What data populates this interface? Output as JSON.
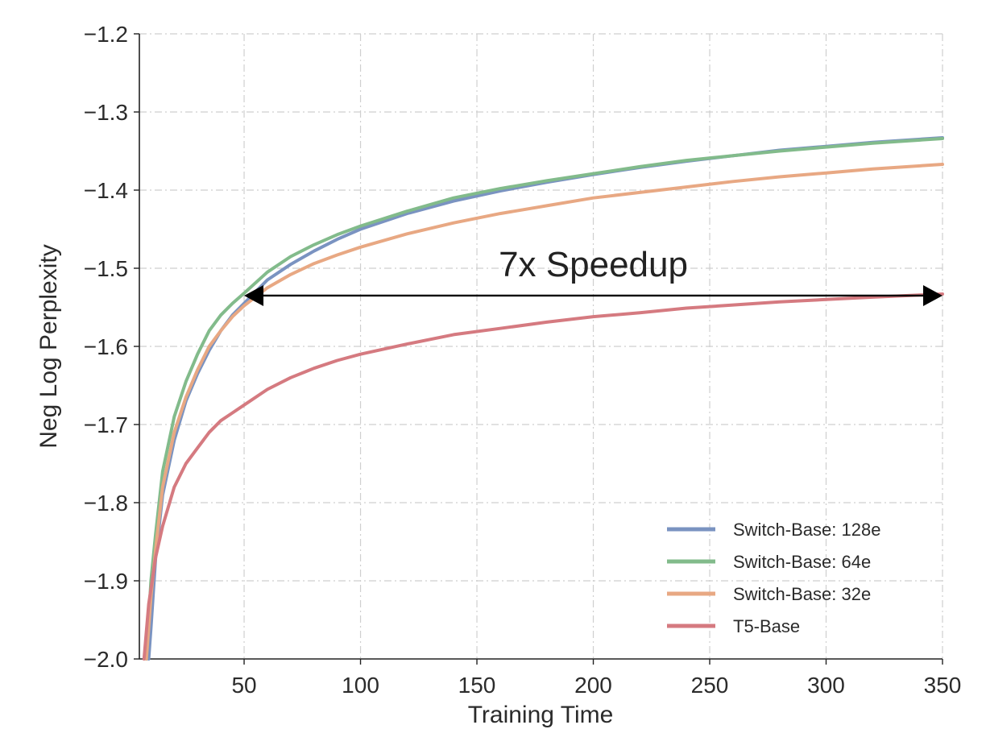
{
  "chart_data": {
    "type": "line",
    "title": "",
    "xlabel": "Training Time",
    "ylabel": "Neg Log Perplexity",
    "xlim": [
      5,
      350
    ],
    "ylim": [
      -2.0,
      -1.2
    ],
    "xticks": [
      50,
      100,
      150,
      200,
      250,
      300,
      350
    ],
    "xtick_labels": [
      "50",
      "100",
      "150",
      "200",
      "250",
      "300",
      "350"
    ],
    "yticks": [
      -2.0,
      -1.9,
      -1.8,
      -1.7,
      -1.6,
      -1.5,
      -1.4,
      -1.3,
      -1.2
    ],
    "ytick_labels": [
      "−2.0",
      "−1.9",
      "−1.8",
      "−1.7",
      "−1.6",
      "−1.5",
      "−1.4",
      "−1.3",
      "−1.2"
    ],
    "grid": true,
    "legend_position": "bottom-right",
    "series": [
      {
        "name": "Switch-Base: 128e",
        "color": "#7a93c1",
        "x": [
          9,
          10,
          12,
          15,
          20,
          25,
          30,
          35,
          40,
          45,
          50,
          60,
          70,
          80,
          90,
          100,
          120,
          140,
          160,
          180,
          200,
          220,
          240,
          260,
          280,
          300,
          320,
          350
        ],
        "y": [
          -2.0,
          -1.96,
          -1.87,
          -1.79,
          -1.72,
          -1.67,
          -1.635,
          -1.605,
          -1.58,
          -1.56,
          -1.545,
          -1.515,
          -1.495,
          -1.478,
          -1.463,
          -1.45,
          -1.43,
          -1.414,
          -1.401,
          -1.39,
          -1.38,
          -1.371,
          -1.363,
          -1.356,
          -1.349,
          -1.344,
          -1.339,
          -1.333
        ]
      },
      {
        "name": "Switch-Base: 64e",
        "color": "#82bb8b",
        "x": [
          8,
          10,
          12,
          15,
          20,
          25,
          30,
          35,
          40,
          45,
          50,
          60,
          70,
          80,
          90,
          100,
          120,
          140,
          160,
          180,
          200,
          220,
          240,
          260,
          280,
          300,
          320,
          350
        ],
        "y": [
          -2.0,
          -1.9,
          -1.84,
          -1.76,
          -1.69,
          -1.645,
          -1.61,
          -1.58,
          -1.56,
          -1.545,
          -1.532,
          -1.505,
          -1.485,
          -1.47,
          -1.457,
          -1.446,
          -1.427,
          -1.41,
          -1.398,
          -1.388,
          -1.379,
          -1.37,
          -1.362,
          -1.356,
          -1.35,
          -1.345,
          -1.34,
          -1.334
        ]
      },
      {
        "name": "Switch-Base: 32e",
        "color": "#e8a883",
        "x": [
          8,
          10,
          12,
          15,
          20,
          25,
          30,
          35,
          40,
          45,
          50,
          60,
          70,
          80,
          90,
          100,
          120,
          140,
          160,
          180,
          200,
          220,
          240,
          260,
          280,
          300,
          320,
          350
        ],
        "y": [
          -2.0,
          -1.92,
          -1.86,
          -1.78,
          -1.71,
          -1.665,
          -1.63,
          -1.6,
          -1.58,
          -1.562,
          -1.548,
          -1.525,
          -1.508,
          -1.494,
          -1.483,
          -1.473,
          -1.456,
          -1.442,
          -1.43,
          -1.42,
          -1.41,
          -1.403,
          -1.396,
          -1.389,
          -1.383,
          -1.378,
          -1.373,
          -1.367
        ]
      },
      {
        "name": "T5-Base",
        "color": "#d57a80",
        "x": [
          7,
          9,
          12,
          15,
          20,
          25,
          30,
          35,
          40,
          45,
          50,
          60,
          70,
          80,
          90,
          100,
          120,
          140,
          160,
          180,
          200,
          220,
          240,
          260,
          280,
          300,
          320,
          350
        ],
        "y": [
          -2.0,
          -1.93,
          -1.87,
          -1.83,
          -1.78,
          -1.75,
          -1.73,
          -1.71,
          -1.695,
          -1.685,
          -1.675,
          -1.655,
          -1.64,
          -1.628,
          -1.618,
          -1.61,
          -1.597,
          -1.585,
          -1.577,
          -1.569,
          -1.562,
          -1.557,
          -1.551,
          -1.547,
          -1.543,
          -1.54,
          -1.537,
          -1.533
        ]
      }
    ],
    "annotations": [
      {
        "text": "7x Speedup",
        "arrow_from_x": 50,
        "arrow_to_x": 350,
        "arrow_y": -1.535,
        "text_x": 200,
        "text_y": -1.495
      }
    ]
  }
}
